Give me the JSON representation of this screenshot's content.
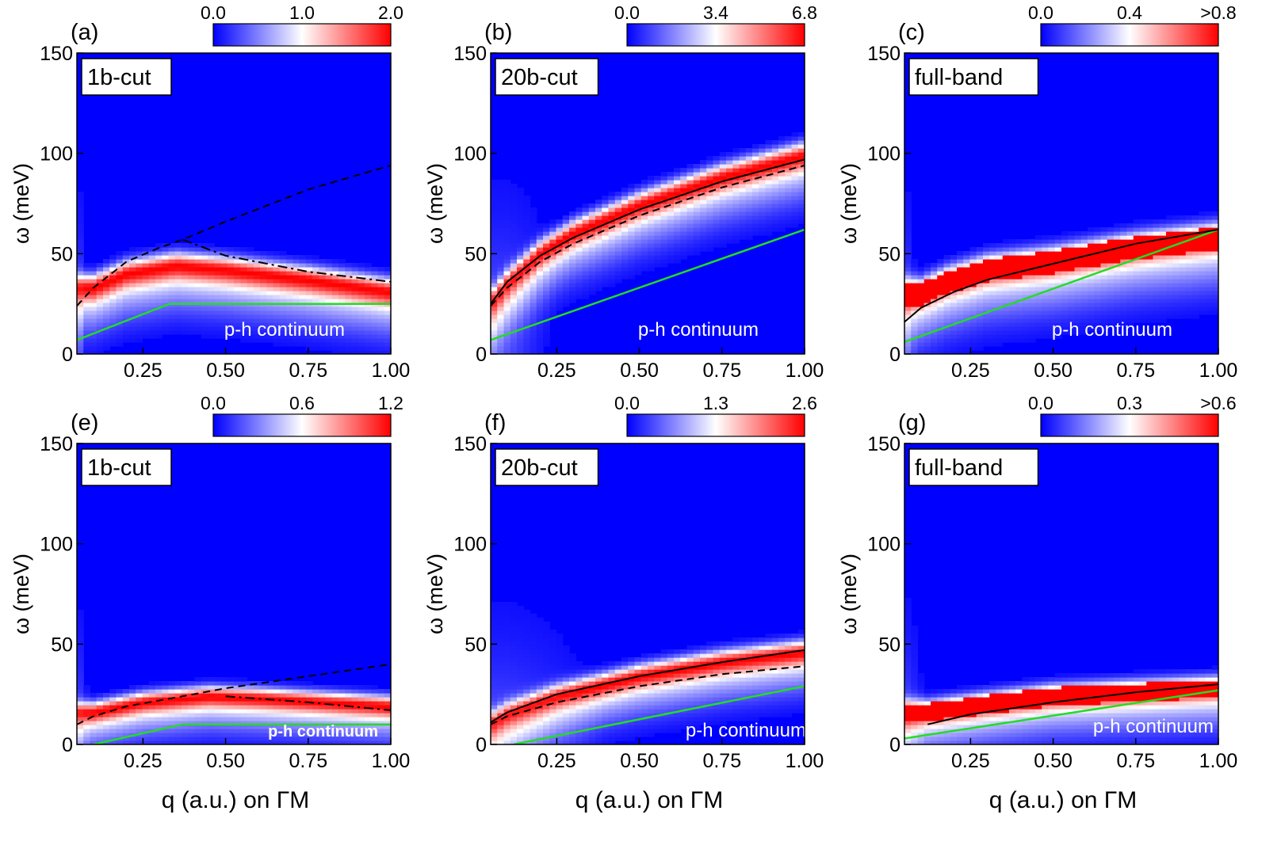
{
  "chart_data": [
    {
      "type": "heatmap",
      "panel_label": "(a)",
      "inset_label": "1b-cut",
      "annotation": "p-h continuum",
      "annotation_bold": false,
      "xlabel": "",
      "ylabel": "ω (meV)",
      "xlim": [
        0.05,
        1.0
      ],
      "ylim": [
        0,
        150
      ],
      "xticks": [
        "0.25",
        "0.50",
        "0.75",
        "1.00"
      ],
      "yticks": [
        "0",
        "50",
        "100",
        "150"
      ],
      "colorbar": {
        "ticks": [
          "0.0",
          "1.0",
          "2.0"
        ],
        "range": [
          0,
          2.0
        ]
      },
      "band": {
        "peak_meV": [
          [
            0.1,
            33
          ],
          [
            0.2,
            40
          ],
          [
            0.35,
            44
          ],
          [
            0.5,
            42
          ],
          [
            0.75,
            37
          ],
          [
            1.0,
            31
          ]
        ],
        "width_meV": 4.5,
        "amplitude": 1.0,
        "onset_q": 0.08
      },
      "curves": {
        "dashed": [
          [
            0.05,
            24
          ],
          [
            0.1,
            33
          ],
          [
            0.2,
            46
          ],
          [
            0.3,
            53
          ],
          [
            0.37,
            57
          ],
          [
            0.5,
            66
          ],
          [
            0.75,
            82
          ],
          [
            1.0,
            94
          ]
        ],
        "dashdot": [
          [
            0.37,
            57
          ],
          [
            0.5,
            49
          ],
          [
            0.75,
            41
          ],
          [
            1.0,
            36
          ]
        ],
        "solid": [],
        "green": [
          [
            0.05,
            7
          ],
          [
            0.33,
            25
          ],
          [
            1.0,
            25
          ]
        ]
      }
    },
    {
      "type": "heatmap",
      "panel_label": "(b)",
      "inset_label": "20b-cut",
      "annotation": "p-h continuum",
      "annotation_bold": false,
      "xlabel": "",
      "ylabel": "ω (meV)",
      "xlim": [
        0.05,
        1.0
      ],
      "ylim": [
        0,
        150
      ],
      "xticks": [
        "0.25",
        "0.50",
        "0.75",
        "1.00"
      ],
      "yticks": [
        "0",
        "50",
        "100",
        "150"
      ],
      "colorbar": {
        "ticks": [
          "0.0",
          "3.4",
          "6.8"
        ],
        "range": [
          0,
          6.8
        ]
      },
      "band": {
        "peak_meV": [
          [
            0.05,
            25
          ],
          [
            0.1,
            35
          ],
          [
            0.2,
            50
          ],
          [
            0.3,
            60
          ],
          [
            0.5,
            74
          ],
          [
            0.75,
            88
          ],
          [
            1.0,
            99
          ]
        ],
        "width_meV": 4.5,
        "amplitude": 1.0,
        "onset_q": 0.25
      },
      "curves": {
        "dashed": [
          [
            0.05,
            24
          ],
          [
            0.1,
            33
          ],
          [
            0.2,
            46
          ],
          [
            0.3,
            55
          ],
          [
            0.5,
            69
          ],
          [
            0.75,
            83
          ],
          [
            1.0,
            94
          ]
        ],
        "dashdot": [],
        "solid": [
          [
            0.05,
            25
          ],
          [
            0.1,
            36
          ],
          [
            0.2,
            49
          ],
          [
            0.3,
            58
          ],
          [
            0.5,
            72
          ],
          [
            0.75,
            86
          ],
          [
            1.0,
            97
          ]
        ],
        "green": [
          [
            0.05,
            7
          ],
          [
            1.0,
            62
          ]
        ]
      }
    },
    {
      "type": "heatmap",
      "panel_label": "(c)",
      "inset_label": "full-band",
      "annotation": "p-h continuum",
      "annotation_bold": false,
      "xlabel": "",
      "ylabel": "ω (meV)",
      "xlim": [
        0.05,
        1.0
      ],
      "ylim": [
        0,
        150
      ],
      "xticks": [
        "0.25",
        "0.50",
        "0.75",
        "1.00"
      ],
      "yticks": [
        "0",
        "50",
        "100",
        "150"
      ],
      "colorbar": {
        "ticks": [
          "0.0",
          "0.4",
          ">0.8"
        ],
        "range": [
          0,
          0.8
        ]
      },
      "band": {
        "peak_meV": [
          [
            0.1,
            30
          ],
          [
            0.18,
            36
          ],
          [
            0.3,
            42
          ],
          [
            0.5,
            46
          ],
          [
            0.75,
            53
          ],
          [
            1.0,
            58
          ]
        ],
        "width_meV": 5.0,
        "amplitude": 1.0,
        "onset_q": 0.09,
        "saturated": true
      },
      "curves": {
        "dashed": [],
        "dashdot": [],
        "solid": [
          [
            0.05,
            16
          ],
          [
            0.1,
            23
          ],
          [
            0.2,
            31
          ],
          [
            0.3,
            37
          ],
          [
            0.5,
            45
          ],
          [
            0.75,
            55
          ],
          [
            1.0,
            62
          ]
        ],
        "green": [
          [
            0.05,
            6
          ],
          [
            1.0,
            62
          ]
        ]
      }
    },
    {
      "type": "heatmap",
      "panel_label": "(e)",
      "inset_label": "1b-cut",
      "annotation": "p-h continuum",
      "annotation_bold": true,
      "xlabel": "q (a.u.) on ΓM",
      "ylabel": "ω (meV)",
      "xlim": [
        0.05,
        1.0
      ],
      "ylim": [
        0,
        150
      ],
      "xticks": [
        "0.25",
        "0.50",
        "0.75",
        "1.00"
      ],
      "yticks": [
        "0",
        "50",
        "100",
        "150"
      ],
      "colorbar": {
        "ticks": [
          "0.0",
          "0.6",
          "1.2"
        ],
        "range": [
          0,
          1.2
        ]
      },
      "band": {
        "peak_meV": [
          [
            0.1,
            16
          ],
          [
            0.25,
            21
          ],
          [
            0.45,
            24
          ],
          [
            0.6,
            23
          ],
          [
            0.8,
            21
          ],
          [
            1.0,
            19
          ]
        ],
        "width_meV": 3.5,
        "amplitude": 1.0,
        "onset_q": 0.09
      },
      "curves": {
        "dashed": [
          [
            0.05,
            10
          ],
          [
            0.1,
            14
          ],
          [
            0.2,
            19
          ],
          [
            0.37,
            24
          ],
          [
            0.5,
            28
          ],
          [
            0.75,
            34
          ],
          [
            1.0,
            40
          ]
        ],
        "dashdot": [
          [
            0.5,
            24
          ],
          [
            0.75,
            21
          ],
          [
            1.0,
            17
          ]
        ],
        "solid": [],
        "green": [
          [
            0.1,
            0
          ],
          [
            0.37,
            10
          ],
          [
            1.0,
            10
          ]
        ]
      }
    },
    {
      "type": "heatmap",
      "panel_label": "(f)",
      "inset_label": "20b-cut",
      "annotation": "p-h continuum",
      "annotation_bold": false,
      "xlabel": "q (a.u.) on ΓM",
      "ylabel": "ω (meV)",
      "xlim": [
        0.05,
        1.0
      ],
      "ylim": [
        0,
        150
      ],
      "xticks": [
        "0.25",
        "0.50",
        "0.75",
        "1.00"
      ],
      "yticks": [
        "0",
        "50",
        "100",
        "150"
      ],
      "colorbar": {
        "ticks": [
          "0.0",
          "1.3",
          "2.6"
        ],
        "range": [
          0,
          2.6
        ]
      },
      "band": {
        "peak_meV": [
          [
            0.05,
            10
          ],
          [
            0.1,
            15
          ],
          [
            0.25,
            24
          ],
          [
            0.5,
            34
          ],
          [
            0.75,
            41
          ],
          [
            1.0,
            46
          ]
        ],
        "width_meV": 4.0,
        "amplitude": 1.0,
        "onset_q": 0.4
      },
      "curves": {
        "dashed": [
          [
            0.05,
            10
          ],
          [
            0.1,
            14
          ],
          [
            0.25,
            21
          ],
          [
            0.5,
            29
          ],
          [
            0.75,
            35
          ],
          [
            1.0,
            39
          ]
        ],
        "dashdot": [],
        "solid": [
          [
            0.05,
            11
          ],
          [
            0.1,
            16
          ],
          [
            0.25,
            25
          ],
          [
            0.5,
            34
          ],
          [
            0.75,
            41
          ],
          [
            1.0,
            47
          ]
        ],
        "green": [
          [
            0.12,
            0
          ],
          [
            1.0,
            29
          ]
        ]
      }
    },
    {
      "type": "heatmap",
      "panel_label": "(g)",
      "inset_label": "full-band",
      "annotation": "p-h continuum",
      "annotation_bold": false,
      "xlabel": "q (a.u.) on ΓM",
      "ylabel": "ω (meV)",
      "xlim": [
        0.05,
        1.0
      ],
      "ylim": [
        0,
        150
      ],
      "xticks": [
        "0.25",
        "0.50",
        "0.75",
        "1.00"
      ],
      "yticks": [
        "0",
        "50",
        "100",
        "150"
      ],
      "colorbar": {
        "ticks": [
          "0.0",
          "0.3",
          ">0.6"
        ],
        "range": [
          0,
          0.6
        ]
      },
      "band": {
        "peak_meV": [
          [
            0.12,
            16
          ],
          [
            0.3,
            20
          ],
          [
            0.5,
            24
          ],
          [
            0.75,
            26
          ],
          [
            1.0,
            28
          ]
        ],
        "width_meV": 4.0,
        "amplitude": 1.0,
        "onset_q": 0.12,
        "saturated": true
      },
      "curves": {
        "dashed": [],
        "dashdot": [],
        "solid": [
          [
            0.12,
            10
          ],
          [
            0.25,
            15
          ],
          [
            0.5,
            21
          ],
          [
            0.75,
            26
          ],
          [
            1.0,
            30
          ]
        ],
        "green": [
          [
            0.05,
            3
          ],
          [
            1.0,
            27
          ]
        ]
      }
    }
  ]
}
